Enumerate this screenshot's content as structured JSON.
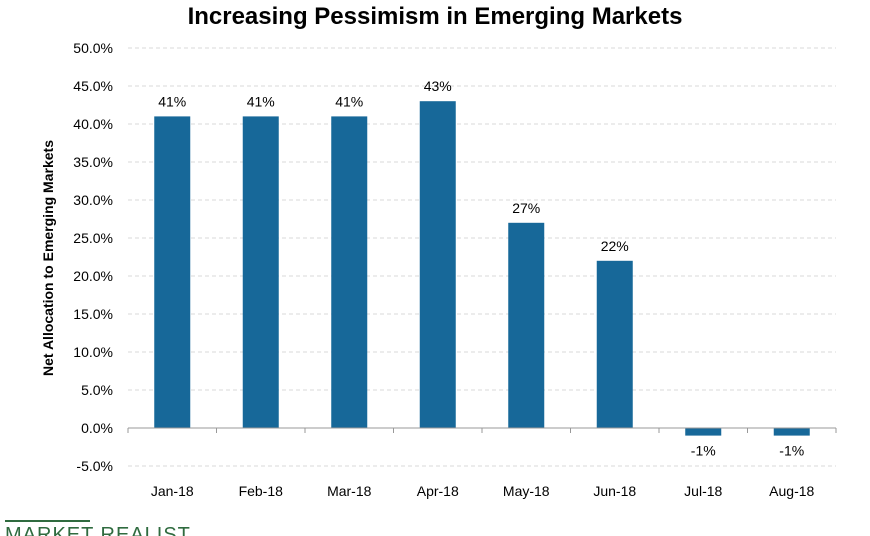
{
  "chart_data": {
    "type": "bar",
    "title": "Increasing Pessimism in Emerging Markets",
    "xlabel": "",
    "ylabel": "Net Allocation to Emerging Markets",
    "categories": [
      "Jan-18",
      "Feb-18",
      "Mar-18",
      "Apr-18",
      "May-18",
      "Jun-18",
      "Jul-18",
      "Aug-18"
    ],
    "values": [
      41,
      41,
      41,
      43,
      27,
      22,
      -1,
      -1
    ],
    "data_labels": [
      "41%",
      "41%",
      "41%",
      "43%",
      "27%",
      "22%",
      "-1%",
      "-1%"
    ],
    "ylim": [
      -5,
      50
    ],
    "yticks": [
      -5,
      0,
      5,
      10,
      15,
      20,
      25,
      30,
      35,
      40,
      45,
      50
    ],
    "ytick_labels": [
      "-5.0%",
      "0.0%",
      "5.0%",
      "10.0%",
      "15.0%",
      "20.0%",
      "25.0%",
      "30.0%",
      "35.0%",
      "40.0%",
      "45.0%",
      "50.0%"
    ],
    "grid": "horizontal dashed",
    "bar_color": "#176899",
    "grid_color": "#d9d9d9",
    "axis_color": "#999999"
  },
  "brand": {
    "watermark": "MARKET REALIST",
    "color": "#2f6b3f"
  }
}
